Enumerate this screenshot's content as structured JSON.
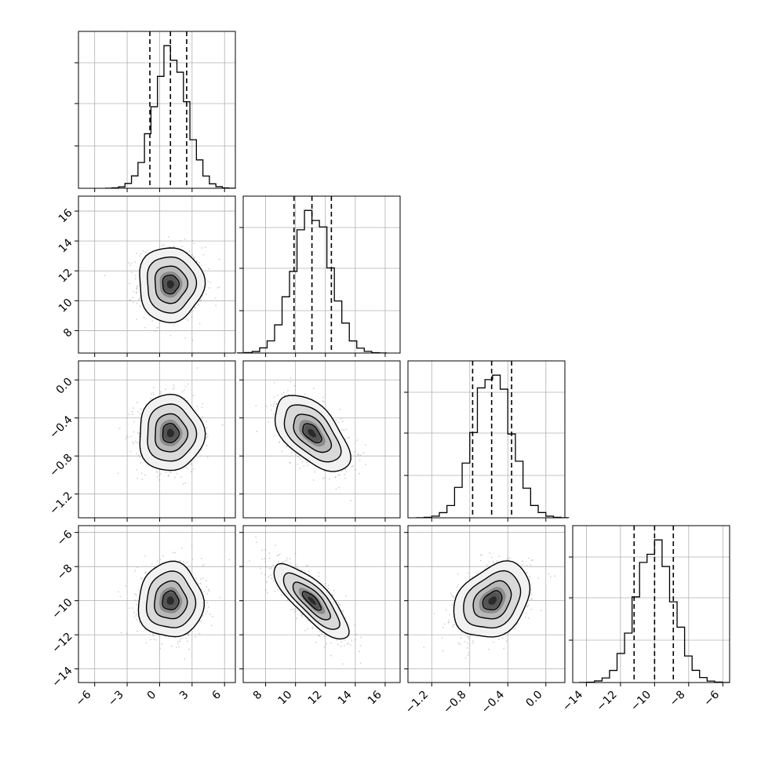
{
  "chart_data": {
    "type": "corner",
    "grid": true,
    "parameters": [
      {
        "id": "p0",
        "xticks": [
          -6,
          -3,
          0,
          3,
          6
        ],
        "xlim": [
          -7.5,
          7.0
        ],
        "quantiles": [
          -0.9,
          1.0,
          2.5
        ],
        "mean": 1.0,
        "sd": 1.5,
        "hist_peak": 1.0
      },
      {
        "id": "p1",
        "xticks": [
          8,
          10,
          12,
          14,
          16
        ],
        "yticks": [
          8,
          10,
          12,
          14,
          16
        ],
        "lim": [
          6.5,
          17.0
        ],
        "quantiles": [
          9.9,
          11.1,
          12.4
        ],
        "mean": 11.1,
        "sd": 1.25
      },
      {
        "id": "p2",
        "xticks": [
          -1.2,
          -0.8,
          -0.4,
          0.0
        ],
        "yticks": [
          0.0,
          -0.4,
          -0.8,
          -1.2
        ],
        "lim": [
          -1.45,
          0.2
        ],
        "quantiles": [
          -0.77,
          -0.57,
          -0.36
        ],
        "mean": -0.56,
        "sd": 0.2
      },
      {
        "id": "p3",
        "xticks": [
          -14,
          -12,
          -10,
          -8,
          -6
        ],
        "yticks": [
          -6,
          -8,
          -10,
          -12,
          -14
        ],
        "lim": [
          -14.8,
          -5.6
        ],
        "quantiles": [
          -11.2,
          -10.0,
          -8.9
        ],
        "mean": -10.0,
        "sd": 1.1
      }
    ],
    "correlations": {
      "p1_p0": 0.0,
      "p2_p0": 0.0,
      "p2_p1": -0.55,
      "p3_p0": 0.0,
      "p3_p1": -0.8,
      "p3_p2": 0.3
    },
    "contour_levels_sigma": [
      0.5,
      1.0,
      1.5,
      2.0
    ],
    "histogram_bins": 20
  }
}
